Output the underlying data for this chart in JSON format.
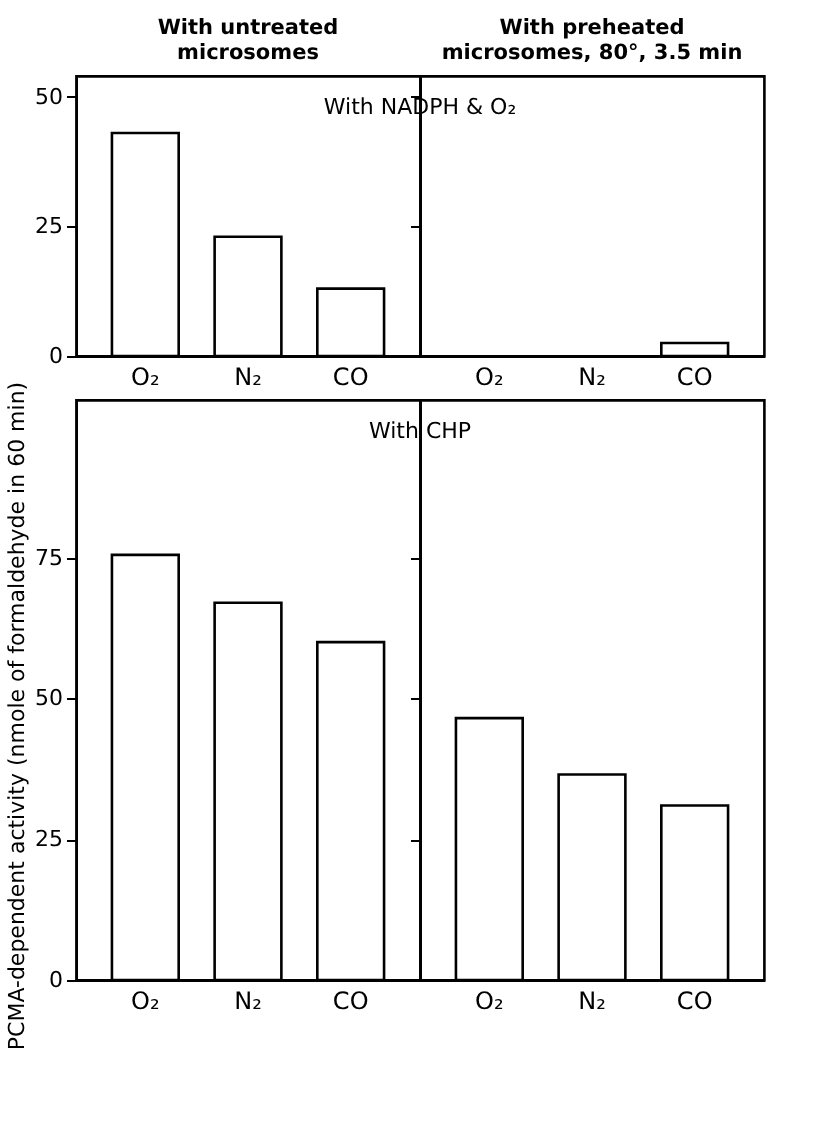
{
  "chart_data": [
    {
      "type": "bar",
      "title": "With untreated microsomes",
      "ylabel": "PCMA-dependent activity (nmole of formaldehyde in 60 min)",
      "annotations": [
        "With NADPH & O₂"
      ],
      "categories": [
        "O₂",
        "N₂",
        "CO"
      ],
      "values": [
        43,
        23,
        13
      ],
      "color": "#ffffff",
      "ylim": [
        0,
        54
      ],
      "yticks": [
        0,
        25,
        50
      ]
    },
    {
      "type": "bar",
      "title": "With preheated microsomes, 80°, 3.5 min",
      "categories": [
        "O₂",
        "N₂",
        "CO"
      ],
      "values": [
        0,
        0,
        2.5
      ],
      "color": "#ffffff",
      "ylim": [
        0,
        54
      ],
      "yticks": [
        0,
        25,
        50
      ],
      "tick_labels": "x"
    },
    {
      "type": "bar",
      "annotations": [
        "With CHP"
      ],
      "categories": [
        "O₂",
        "N₂",
        "CO"
      ],
      "values": [
        75.5,
        67,
        60
      ],
      "color": "#ffffff",
      "ylim": [
        0,
        103
      ],
      "yticks": [
        0,
        25,
        50,
        75
      ]
    },
    {
      "type": "bar",
      "categories": [
        "O₂",
        "N₂",
        "CO"
      ],
      "values": [
        46.5,
        36.5,
        31
      ],
      "color": "#ffffff",
      "ylim": [
        0,
        103
      ],
      "yticks": [
        0,
        25,
        50,
        75
      ],
      "tick_labels": "x"
    }
  ]
}
